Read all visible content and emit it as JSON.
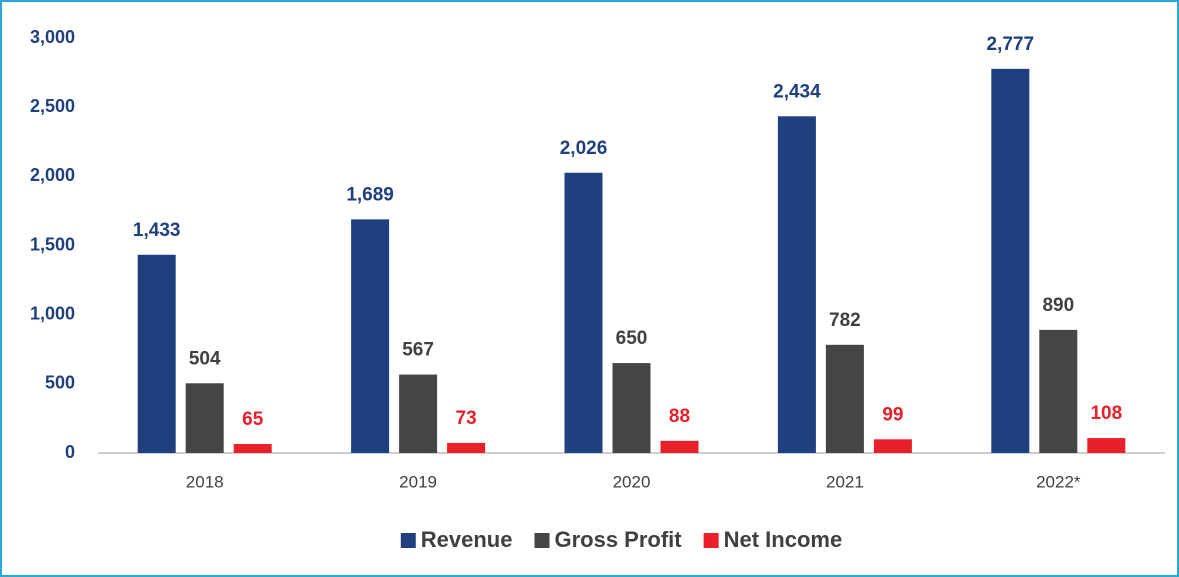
{
  "chart_data": {
    "type": "bar",
    "categories": [
      "2018",
      "2019",
      "2020",
      "2021",
      "2022*"
    ],
    "series": [
      {
        "name": "Revenue",
        "color": "#1f3f7f",
        "values": [
          1433,
          1689,
          2026,
          2434,
          2777
        ],
        "value_labels": [
          "1,433",
          "1,689",
          "2,026",
          "2,434",
          "2,777"
        ]
      },
      {
        "name": "Gross Profit",
        "color": "#454545",
        "values": [
          504,
          567,
          650,
          782,
          890
        ]
      },
      {
        "name": "Net Income",
        "color": "#e8202a",
        "values": [
          65,
          73,
          88,
          99,
          108
        ]
      }
    ],
    "ylim": [
      0,
      3000
    ],
    "yticks": [
      0,
      {
        "value": 500,
        "label": "500"
      },
      {
        "value": 1000,
        "label": "1,000"
      },
      {
        "value": 1500,
        "label": "1,500"
      },
      {
        "value": 2000,
        "label": "2,000"
      },
      {
        "value": 2500,
        "label": "2,500"
      },
      {
        "value": 3000,
        "label": "3,000"
      }
    ],
    "grid": false,
    "legend": "bottom"
  }
}
